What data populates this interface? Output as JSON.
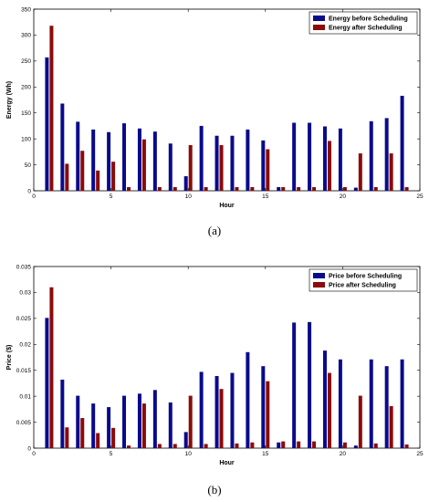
{
  "chart_data": [
    {
      "type": "bar",
      "xlabel": "Hour",
      "ylabel": "Energy (Wh)",
      "xlim": [
        0,
        25
      ],
      "ylim": [
        0,
        350
      ],
      "xticks": [
        0,
        5,
        10,
        15,
        20,
        25
      ],
      "yticks": [
        0,
        50,
        100,
        150,
        200,
        250,
        300,
        350
      ],
      "legend_position": "top-right",
      "grid": false,
      "x": [
        1,
        2,
        3,
        4,
        5,
        6,
        7,
        8,
        9,
        10,
        11,
        12,
        13,
        14,
        15,
        16,
        17,
        18,
        19,
        20,
        21,
        22,
        23,
        24
      ],
      "series": [
        {
          "name": "Energy before Scheduling",
          "color": "#0a0a8c",
          "values": [
            257,
            168,
            133,
            118,
            113,
            130,
            120,
            114,
            91,
            28,
            125,
            106,
            106,
            118,
            97,
            7,
            131,
            131,
            124,
            120,
            6,
            134,
            140,
            183
          ]
        },
        {
          "name": "Energy after Scheduling",
          "color": "#8b0a0a",
          "values": [
            318,
            52,
            77,
            39,
            56,
            7,
            99,
            7,
            7,
            88,
            7,
            88,
            7,
            7,
            80,
            7,
            7,
            7,
            96,
            7,
            72,
            7,
            72,
            7
          ]
        }
      ],
      "caption": "(a)"
    },
    {
      "type": "bar",
      "xlabel": "Hour",
      "ylabel": "Price ($)",
      "xlim": [
        0,
        25
      ],
      "ylim": [
        0,
        0.035
      ],
      "xticks": [
        0,
        5,
        10,
        15,
        20,
        25
      ],
      "yticks": [
        0,
        0.005,
        0.01,
        0.015,
        0.02,
        0.025,
        0.03,
        0.035
      ],
      "legend_position": "top-right",
      "grid": false,
      "x": [
        1,
        2,
        3,
        4,
        5,
        6,
        7,
        8,
        9,
        10,
        11,
        12,
        13,
        14,
        15,
        16,
        17,
        18,
        19,
        20,
        21,
        22,
        23,
        24
      ],
      "series": [
        {
          "name": "Price before Scheduling",
          "color": "#0a0a8c",
          "values": [
            0.0251,
            0.0132,
            0.0101,
            0.0086,
            0.0079,
            0.0101,
            0.0105,
            0.0112,
            0.0088,
            0.0031,
            0.0147,
            0.0139,
            0.0145,
            0.0185,
            0.0158,
            0.0011,
            0.0242,
            0.0243,
            0.0188,
            0.0171,
            0.0005,
            0.0171,
            0.0158,
            0.0171
          ]
        },
        {
          "name": "Price after Scheduling",
          "color": "#8b0a0a",
          "values": [
            0.031,
            0.004,
            0.0058,
            0.0029,
            0.0039,
            0.0005,
            0.0086,
            0.0008,
            0.0008,
            0.0101,
            0.0008,
            0.0114,
            0.0009,
            0.0011,
            0.0129,
            0.0013,
            0.0013,
            0.0013,
            0.0145,
            0.0011,
            0.0101,
            0.0009,
            0.0081,
            0.0007
          ]
        }
      ],
      "caption": "(b)"
    }
  ]
}
